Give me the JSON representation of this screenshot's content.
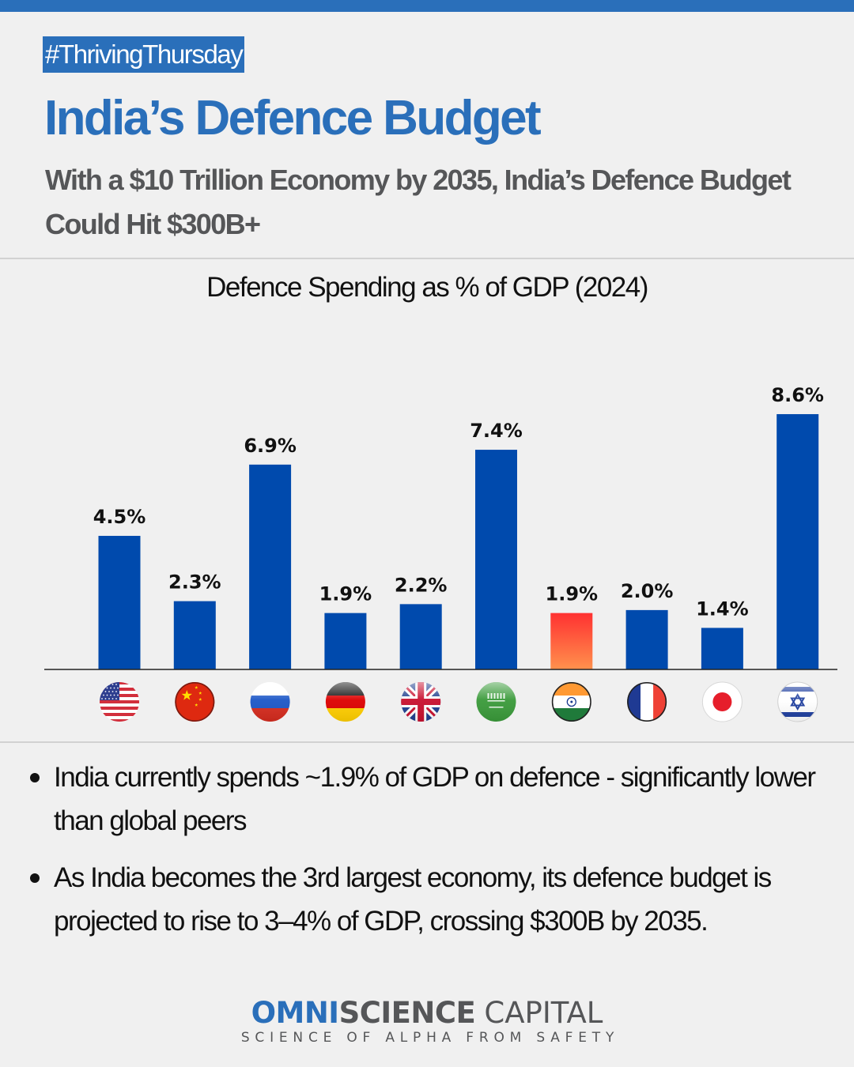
{
  "header": {
    "tag": "#ThrivingThursday",
    "title": "India’s Defence Budget",
    "subtitle": "With a $10 Trillion Economy by 2035, India’s Defence Budget Could Hit $300B+"
  },
  "colors": {
    "brand_blue": "#2a6fba",
    "bar_blue": "#004aad",
    "india_bar_top": "#ff3131",
    "india_bar_bottom": "#ff914d",
    "subtitle_gray": "#555658",
    "background": "#f0f0f0"
  },
  "chart_data": {
    "type": "bar",
    "title": "Defence Spending as % of GDP (2024)",
    "xlabel": "",
    "ylabel": "",
    "ylim": [
      0,
      9
    ],
    "grid": false,
    "legend": "none",
    "categories": [
      "United States",
      "China",
      "Russia",
      "Germany",
      "United Kingdom",
      "Saudi Arabia",
      "India",
      "France",
      "Japan",
      "Israel"
    ],
    "category_icons": [
      "us-flag-icon",
      "china-flag-icon",
      "russia-flag-icon",
      "germany-flag-icon",
      "uk-flag-icon",
      "saudi-flag-icon",
      "india-flag-icon",
      "france-flag-icon",
      "japan-flag-icon",
      "israel-flag-icon"
    ],
    "values": [
      4.5,
      2.3,
      6.9,
      1.9,
      2.2,
      7.4,
      1.9,
      2.0,
      1.4,
      8.6
    ],
    "data_labels": [
      "4.5%",
      "2.3%",
      "6.9%",
      "1.9%",
      "2.2%",
      "7.4%",
      "1.9%",
      "2.0%",
      "1.4%",
      "8.6%"
    ],
    "highlight": "India"
  },
  "bullets": [
    "India currently spends ~1.9% of GDP on defence - significantly lower than global peers",
    "As India becomes the 3rd largest economy, its defence budget is projected to rise to 3–4% of GDP, crossing $300B by 2035."
  ],
  "logo": {
    "part1": "OMNI",
    "part2": "SCIENCE",
    "part3": "CAPITAL",
    "tagline": "SCIENCE OF ALPHA FROM SAFETY"
  }
}
